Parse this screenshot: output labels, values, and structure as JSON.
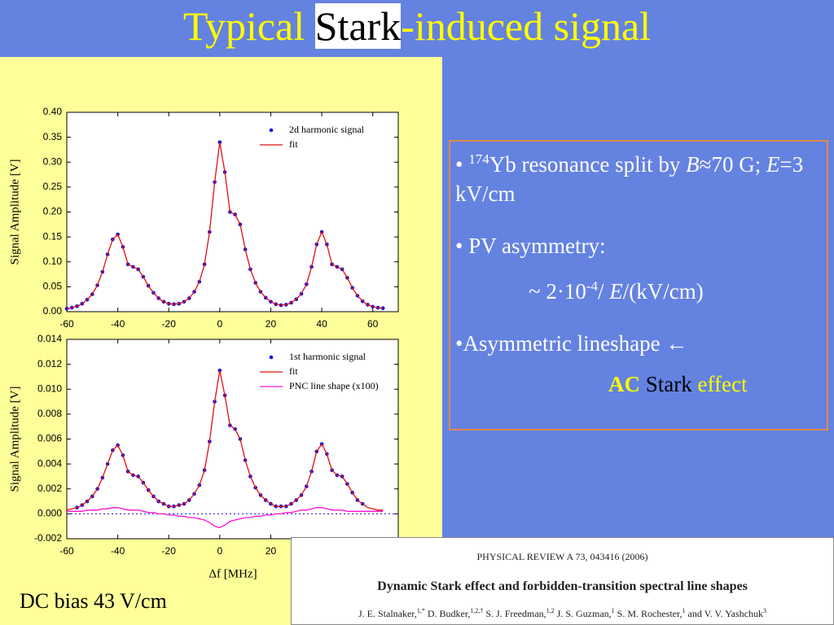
{
  "slide": {
    "title": [
      "Typical ",
      "Stark",
      "-induced signal"
    ],
    "bullets": [
      [
        "•",
        "174",
        "Yb resonance split by ",
        "B",
        "≈70 G;  ",
        "E",
        "=3 kV/cm"
      ],
      [
        "• PV asymmetry:"
      ],
      [
        "~ 2·10",
        "-4",
        "/ ",
        "E",
        "/(kV/cm)"
      ],
      [
        "•Asymmetric lineshape ←"
      ],
      [
        "AC",
        " Stark",
        " effect"
      ]
    ],
    "note": "DC bias 43 V/cm",
    "paper": {
      "journal": "PHYSICAL REVIEW A 73, 043416 (2006)",
      "title": "Dynamic Stark effect and forbidden-transition spectral line shapes",
      "authors": [
        "J. E. Stalnaker,",
        "1,*",
        " D. Budker,",
        "1,2,†",
        " S. J. Freedman,",
        "1,2",
        " J. S. Guzman,",
        "1",
        " S. M. Rochester,",
        "1",
        " and V. V. Yashchuk",
        "3"
      ]
    }
  },
  "chart_data": [
    {
      "type": "scatter",
      "ylabel": "Signal Amplitude [V]",
      "xlim": [
        -60,
        70
      ],
      "xticks": [
        -60,
        -40,
        -20,
        0,
        20,
        40,
        60
      ],
      "ylim": [
        0,
        0.4
      ],
      "yticks": [
        {
          "value": 0,
          "label": "0.00"
        },
        {
          "value": 0.05,
          "label": "0.05"
        },
        {
          "value": 0.1,
          "label": "0.10"
        },
        {
          "value": 0.15,
          "label": "0.15"
        },
        {
          "value": 0.2,
          "label": "0.20"
        },
        {
          "value": 0.25,
          "label": "0.25"
        },
        {
          "value": 0.3,
          "label": "0.30"
        },
        {
          "value": 0.35,
          "label": "0.35"
        },
        {
          "value": 0.4,
          "label": "0.40"
        }
      ],
      "x": [
        -60,
        -58,
        -56,
        -54,
        -52,
        -50,
        -48,
        -46,
        -44,
        -42,
        -40,
        -38,
        -36,
        -34,
        -32,
        -30,
        -28,
        -26,
        -24,
        -22,
        -20,
        -18,
        -16,
        -14,
        -12,
        -10,
        -8,
        -6,
        -4,
        -2,
        0,
        2,
        4,
        6,
        8,
        10,
        12,
        14,
        16,
        18,
        20,
        22,
        24,
        26,
        28,
        30,
        32,
        34,
        36,
        38,
        40,
        42,
        44,
        46,
        48,
        50,
        52,
        54,
        56,
        58,
        60,
        62,
        64
      ],
      "series": [
        {
          "name": "2d harmonic signal",
          "mode": "markers",
          "color": "#1010e0",
          "values": [
            0.006,
            0.008,
            0.011,
            0.016,
            0.024,
            0.035,
            0.053,
            0.08,
            0.115,
            0.145,
            0.155,
            0.13,
            0.095,
            0.09,
            0.085,
            0.07,
            0.052,
            0.038,
            0.027,
            0.02,
            0.016,
            0.015,
            0.016,
            0.02,
            0.027,
            0.04,
            0.06,
            0.095,
            0.16,
            0.26,
            0.34,
            0.28,
            0.2,
            0.195,
            0.175,
            0.125,
            0.085,
            0.058,
            0.04,
            0.028,
            0.02,
            0.015,
            0.013,
            0.014,
            0.018,
            0.025,
            0.036,
            0.055,
            0.09,
            0.135,
            0.16,
            0.135,
            0.095,
            0.09,
            0.085,
            0.068,
            0.048,
            0.032,
            0.021,
            0.014,
            0.01,
            0.008,
            0.007
          ]
        },
        {
          "name": "fit",
          "mode": "line",
          "color": "#e01010",
          "values": [
            0.006,
            0.008,
            0.011,
            0.016,
            0.024,
            0.035,
            0.053,
            0.08,
            0.115,
            0.145,
            0.155,
            0.13,
            0.095,
            0.09,
            0.085,
            0.07,
            0.052,
            0.038,
            0.027,
            0.02,
            0.016,
            0.015,
            0.016,
            0.02,
            0.027,
            0.04,
            0.06,
            0.095,
            0.16,
            0.26,
            0.34,
            0.28,
            0.2,
            0.195,
            0.175,
            0.125,
            0.085,
            0.058,
            0.04,
            0.028,
            0.02,
            0.015,
            0.013,
            0.014,
            0.018,
            0.025,
            0.036,
            0.055,
            0.09,
            0.135,
            0.16,
            0.135,
            0.095,
            0.09,
            0.085,
            0.068,
            0.048,
            0.032,
            0.021,
            0.014,
            0.01,
            0.008,
            0.007
          ]
        }
      ]
    },
    {
      "type": "scatter",
      "ylabel": "Signal Amplitude [V]",
      "xlabel": "Δf [MHz]",
      "xlim": [
        -60,
        70
      ],
      "xticks": [
        -60,
        -40,
        -20,
        0,
        20
      ],
      "zero_line": true,
      "ylim": [
        -0.002,
        0.014
      ],
      "yticks": [
        {
          "value": -0.002,
          "label": "-0.002"
        },
        {
          "value": 0,
          "label": "0.000"
        },
        {
          "value": 0.002,
          "label": "0.002"
        },
        {
          "value": 0.004,
          "label": "0.004"
        },
        {
          "value": 0.006,
          "label": "0.006"
        },
        {
          "value": 0.008,
          "label": "0.008"
        },
        {
          "value": 0.01,
          "label": "0.010"
        },
        {
          "value": 0.012,
          "label": "0.012"
        },
        {
          "value": 0.014,
          "label": "0.014"
        }
      ],
      "x": [
        -60,
        -58,
        -56,
        -54,
        -52,
        -50,
        -48,
        -46,
        -44,
        -42,
        -40,
        -38,
        -36,
        -34,
        -32,
        -30,
        -28,
        -26,
        -24,
        -22,
        -20,
        -18,
        -16,
        -14,
        -12,
        -10,
        -8,
        -6,
        -4,
        -2,
        0,
        2,
        4,
        6,
        8,
        10,
        12,
        14,
        16,
        18,
        20,
        22,
        24,
        26,
        28,
        30,
        32,
        34,
        36,
        38,
        40,
        42,
        44,
        46,
        48,
        50,
        52,
        54,
        56,
        58,
        60,
        62,
        64
      ],
      "series": [
        {
          "name": "1st harmonic signal",
          "mode": "markers",
          "color": "#1010e0",
          "values": [
            null,
            null,
            0.0005,
            0.0007,
            0.001,
            0.0014,
            0.002,
            0.0029,
            0.004,
            0.0051,
            0.0055,
            0.0047,
            0.0034,
            0.0031,
            0.003,
            0.0025,
            0.0019,
            0.0014,
            0.001,
            0.0008,
            0.0006,
            0.0006,
            0.0007,
            0.0008,
            0.0011,
            0.0016,
            0.0023,
            0.0035,
            0.0058,
            0.009,
            0.0115,
            0.0095,
            0.0071,
            0.0068,
            0.006,
            0.0043,
            0.003,
            0.0021,
            0.0015,
            0.0011,
            0.0008,
            0.0006,
            0.0006,
            0.0006,
            0.0008,
            0.0011,
            0.0015,
            0.0022,
            0.0034,
            0.005,
            0.0056,
            0.0048,
            0.0035,
            0.0031,
            0.003,
            0.0024,
            0.0017,
            0.0011,
            0.0008,
            null,
            null,
            null,
            null
          ]
        },
        {
          "name": "fit",
          "mode": "line",
          "color": "#e01010",
          "values": [
            0.0003,
            0.0004,
            0.0005,
            0.0007,
            0.001,
            0.0014,
            0.002,
            0.0029,
            0.004,
            0.0051,
            0.0055,
            0.0047,
            0.0034,
            0.0031,
            0.003,
            0.0025,
            0.0019,
            0.0014,
            0.001,
            0.0008,
            0.0006,
            0.0006,
            0.0007,
            0.0008,
            0.0011,
            0.0016,
            0.0023,
            0.0035,
            0.0058,
            0.009,
            0.0115,
            0.0095,
            0.0071,
            0.0068,
            0.006,
            0.0043,
            0.003,
            0.0021,
            0.0015,
            0.0011,
            0.0008,
            0.0006,
            0.0006,
            0.0006,
            0.0008,
            0.0011,
            0.0015,
            0.0022,
            0.0034,
            0.005,
            0.0056,
            0.0048,
            0.0035,
            0.0031,
            0.003,
            0.0024,
            0.0017,
            0.0011,
            0.0008,
            0.0005,
            0.0004,
            0.0003,
            0.0003
          ]
        },
        {
          "name": "PNC line shape (x100)",
          "mode": "line",
          "color": "#ff10d0",
          "values": [
            0.0002,
            0.0002,
            0.0002,
            0.0002,
            0.0003,
            0.0003,
            0.0003,
            0.0004,
            0.0004,
            0.0005,
            0.0005,
            0.0004,
            0.0003,
            0.0003,
            0.0003,
            0.0002,
            0.0001,
            0.0001,
            0,
            0,
            -0.0001,
            -0.0001,
            -0.0002,
            -0.0002,
            -0.0003,
            -0.0003,
            -0.0004,
            -0.0005,
            -0.0007,
            -0.001,
            -0.0011,
            -0.0009,
            -0.0006,
            -0.0005,
            -0.0004,
            -0.0003,
            -0.0003,
            -0.0002,
            -0.0002,
            -0.0001,
            -0.0001,
            0,
            0,
            0.0001,
            0.0001,
            0.0002,
            0.0003,
            0.0003,
            0.0004,
            0.0005,
            0.0005,
            0.0004,
            0.0003,
            0.0003,
            0.0003,
            0.0002,
            0.0002,
            0.0002,
            0.0002,
            0.0002,
            0.0002,
            0.0002,
            0.0002
          ]
        }
      ]
    }
  ]
}
